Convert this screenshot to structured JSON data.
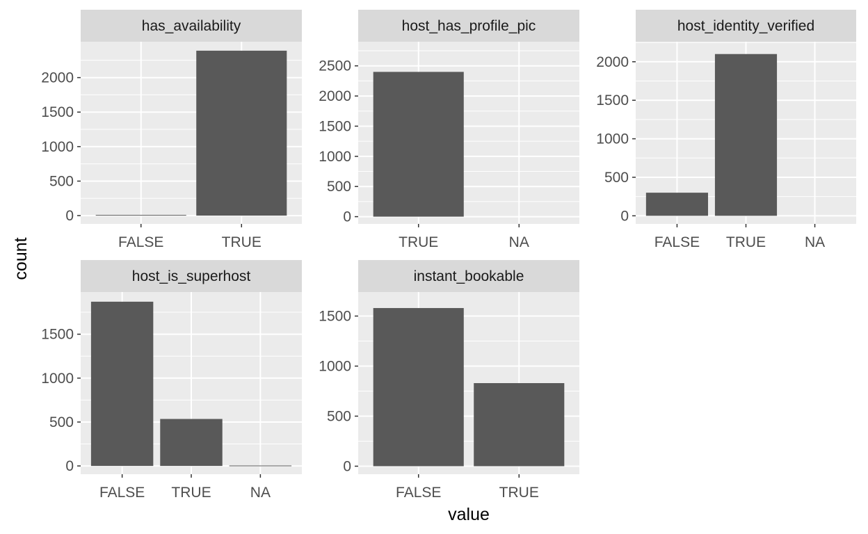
{
  "chart_data": {
    "type": "bar",
    "xlabel": "value",
    "ylabel": "count",
    "grid": true,
    "colors": {
      "bar": "#595959",
      "panel_background": "#ebebeb",
      "strip_background": "#d9d9d9",
      "grid_line": "#ffffff"
    },
    "panels": [
      {
        "title": "has_availability",
        "categories": [
          "FALSE",
          "TRUE"
        ],
        "values": [
          10,
          2390
        ],
        "ylim": [
          -120,
          2520
        ],
        "yticks": [
          0,
          500,
          1000,
          1500,
          2000
        ]
      },
      {
        "title": "host_has_profile_pic",
        "categories": [
          "TRUE",
          "NA"
        ],
        "values": [
          2400,
          0
        ],
        "ylim": [
          -120,
          2900
        ],
        "yticks": [
          0,
          500,
          1000,
          1500,
          2000,
          2500
        ]
      },
      {
        "title": "host_identity_verified",
        "categories": [
          "FALSE",
          "TRUE",
          "NA"
        ],
        "values": [
          300,
          2100,
          0
        ],
        "ylim": [
          -105,
          2260
        ],
        "yticks": [
          0,
          500,
          1000,
          1500,
          2000
        ]
      },
      {
        "title": "host_is_superhost",
        "categories": [
          "FALSE",
          "TRUE",
          "NA"
        ],
        "values": [
          1870,
          535,
          5
        ],
        "ylim": [
          -94,
          1980
        ],
        "yticks": [
          0,
          500,
          1000,
          1500
        ]
      },
      {
        "title": "instant_bookable",
        "categories": [
          "FALSE",
          "TRUE"
        ],
        "values": [
          1580,
          830
        ],
        "ylim": [
          -80,
          1740
        ],
        "yticks": [
          0,
          500,
          1000,
          1500
        ]
      }
    ]
  }
}
